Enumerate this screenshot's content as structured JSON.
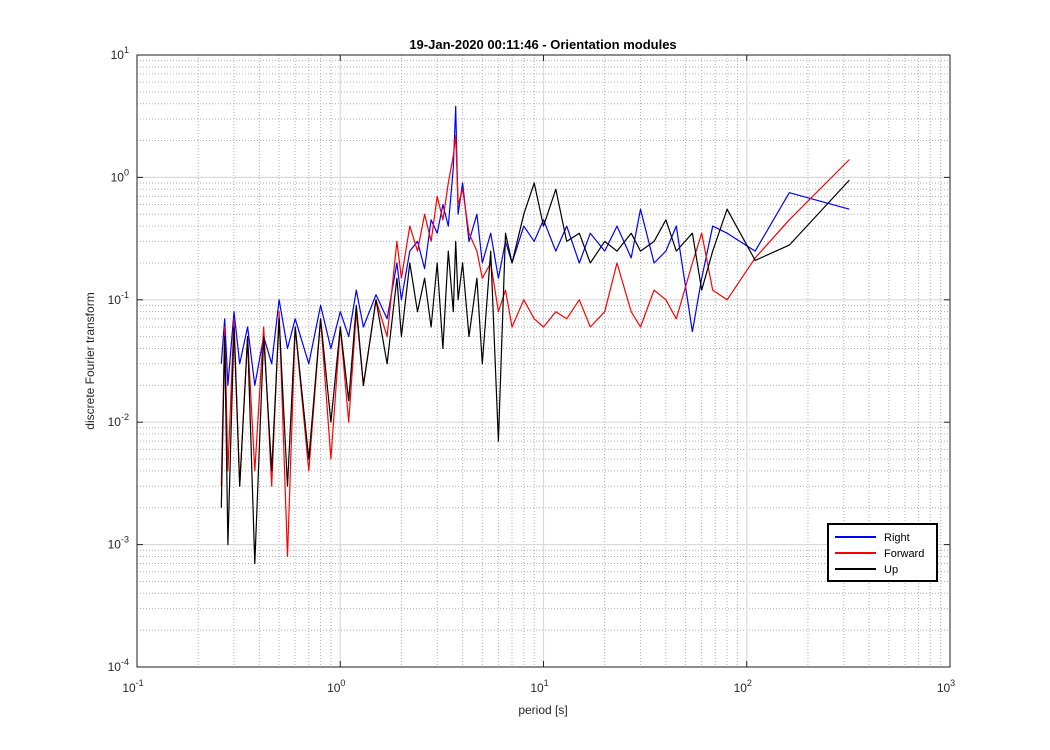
{
  "chart_data": {
    "type": "line",
    "title": "19-Jan-2020 00:11:46 - Orientation modules",
    "xlabel": "period [s]",
    "ylabel": "discrete Fourier transform",
    "xscale": "log",
    "yscale": "log",
    "xlim": [
      0.1,
      1000
    ],
    "ylim": [
      0.0001,
      10
    ],
    "grid": true,
    "minor_grid": true,
    "legend_position": "bottom-right",
    "x_ticks": [
      {
        "base": "10",
        "exp": "-1",
        "value": 0.1
      },
      {
        "base": "10",
        "exp": "0",
        "value": 1
      },
      {
        "base": "10",
        "exp": "1",
        "value": 10
      },
      {
        "base": "10",
        "exp": "2",
        "value": 100
      },
      {
        "base": "10",
        "exp": "3",
        "value": 1000
      }
    ],
    "y_ticks": [
      {
        "base": "10",
        "exp": "-4",
        "value": 0.0001
      },
      {
        "base": "10",
        "exp": "-3",
        "value": 0.001
      },
      {
        "base": "10",
        "exp": "-2",
        "value": 0.01
      },
      {
        "base": "10",
        "exp": "-1",
        "value": 0.1
      },
      {
        "base": "10",
        "exp": "0",
        "value": 1
      },
      {
        "base": "10",
        "exp": "1",
        "value": 10
      }
    ],
    "series": [
      {
        "name": "Right",
        "color": "#0000ff",
        "x": [
          0.26,
          0.27,
          0.28,
          0.3,
          0.32,
          0.35,
          0.38,
          0.42,
          0.46,
          0.5,
          0.55,
          0.6,
          0.7,
          0.8,
          0.9,
          1.0,
          1.1,
          1.2,
          1.3,
          1.5,
          1.7,
          1.9,
          2.0,
          2.2,
          2.4,
          2.6,
          2.8,
          3.0,
          3.2,
          3.4,
          3.6,
          3.7,
          3.8,
          4.0,
          4.3,
          4.7,
          5.0,
          5.5,
          6.0,
          6.5,
          7.0,
          8.0,
          9.0,
          10.0,
          11.5,
          13.0,
          15.0,
          17.0,
          20.0,
          23.0,
          27.0,
          30.0,
          35.0,
          40.0,
          45.0,
          54.0,
          60.0,
          68.0,
          80.0,
          110.0,
          162.0,
          320.0
        ],
        "y": [
          0.03,
          0.07,
          0.02,
          0.08,
          0.03,
          0.06,
          0.02,
          0.05,
          0.03,
          0.1,
          0.04,
          0.07,
          0.03,
          0.09,
          0.04,
          0.08,
          0.05,
          0.12,
          0.06,
          0.11,
          0.07,
          0.2,
          0.1,
          0.25,
          0.3,
          0.18,
          0.45,
          0.35,
          0.6,
          0.4,
          1.2,
          3.8,
          0.5,
          0.9,
          0.3,
          0.5,
          0.2,
          0.35,
          0.15,
          0.3,
          0.2,
          0.4,
          0.3,
          0.45,
          0.25,
          0.4,
          0.2,
          0.35,
          0.25,
          0.4,
          0.22,
          0.55,
          0.2,
          0.25,
          0.4,
          0.055,
          0.15,
          0.4,
          0.35,
          0.25,
          0.75,
          0.55
        ]
      },
      {
        "name": "Forward",
        "color": "#ff0000",
        "x": [
          0.26,
          0.27,
          0.28,
          0.3,
          0.32,
          0.35,
          0.38,
          0.42,
          0.46,
          0.5,
          0.55,
          0.6,
          0.7,
          0.8,
          0.9,
          1.0,
          1.1,
          1.2,
          1.3,
          1.5,
          1.7,
          1.9,
          2.0,
          2.2,
          2.4,
          2.6,
          2.8,
          3.0,
          3.2,
          3.4,
          3.6,
          3.7,
          3.8,
          4.0,
          4.3,
          4.7,
          5.0,
          5.5,
          6.0,
          6.5,
          7.0,
          8.0,
          9.0,
          10.0,
          11.5,
          13.0,
          15.0,
          17.0,
          20.0,
          23.0,
          27.0,
          30.0,
          35.0,
          40.0,
          45.0,
          54.0,
          60.0,
          68.0,
          80.0,
          110.0,
          162.0,
          320.0
        ],
        "y": [
          0.003,
          0.06,
          0.004,
          0.07,
          0.003,
          0.05,
          0.004,
          0.06,
          0.003,
          0.08,
          0.0008,
          0.06,
          0.004,
          0.07,
          0.005,
          0.06,
          0.01,
          0.08,
          0.02,
          0.1,
          0.05,
          0.3,
          0.15,
          0.4,
          0.25,
          0.5,
          0.3,
          0.7,
          0.45,
          0.9,
          1.5,
          2.2,
          0.6,
          0.8,
          0.35,
          0.25,
          0.15,
          0.2,
          0.08,
          0.12,
          0.06,
          0.1,
          0.07,
          0.06,
          0.08,
          0.07,
          0.1,
          0.06,
          0.08,
          0.2,
          0.08,
          0.06,
          0.12,
          0.1,
          0.07,
          0.2,
          0.35,
          0.12,
          0.1,
          0.22,
          0.45,
          1.4
        ]
      },
      {
        "name": "Up",
        "color": "#000000",
        "x": [
          0.26,
          0.27,
          0.28,
          0.3,
          0.32,
          0.35,
          0.38,
          0.42,
          0.46,
          0.5,
          0.55,
          0.6,
          0.7,
          0.8,
          0.9,
          1.0,
          1.1,
          1.2,
          1.3,
          1.5,
          1.7,
          1.9,
          2.0,
          2.2,
          2.4,
          2.6,
          2.8,
          3.0,
          3.2,
          3.4,
          3.6,
          3.7,
          3.8,
          4.0,
          4.3,
          4.7,
          5.0,
          5.5,
          6.0,
          6.5,
          7.0,
          8.0,
          9.0,
          10.0,
          11.5,
          13.0,
          15.0,
          17.0,
          20.0,
          23.0,
          27.0,
          30.0,
          35.0,
          40.0,
          45.0,
          54.0,
          60.0,
          68.0,
          80.0,
          110.0,
          162.0,
          320.0
        ],
        "y": [
          0.002,
          0.05,
          0.001,
          0.06,
          0.003,
          0.05,
          0.0007,
          0.05,
          0.004,
          0.07,
          0.003,
          0.06,
          0.005,
          0.07,
          0.01,
          0.06,
          0.015,
          0.09,
          0.02,
          0.1,
          0.03,
          0.15,
          0.05,
          0.2,
          0.08,
          0.15,
          0.06,
          0.2,
          0.04,
          0.25,
          0.08,
          0.3,
          0.1,
          0.2,
          0.05,
          0.15,
          0.03,
          0.25,
          0.007,
          0.35,
          0.2,
          0.5,
          0.9,
          0.4,
          0.8,
          0.3,
          0.35,
          0.2,
          0.3,
          0.25,
          0.35,
          0.25,
          0.3,
          0.45,
          0.25,
          0.35,
          0.12,
          0.25,
          0.55,
          0.21,
          0.28,
          0.95
        ]
      }
    ]
  }
}
